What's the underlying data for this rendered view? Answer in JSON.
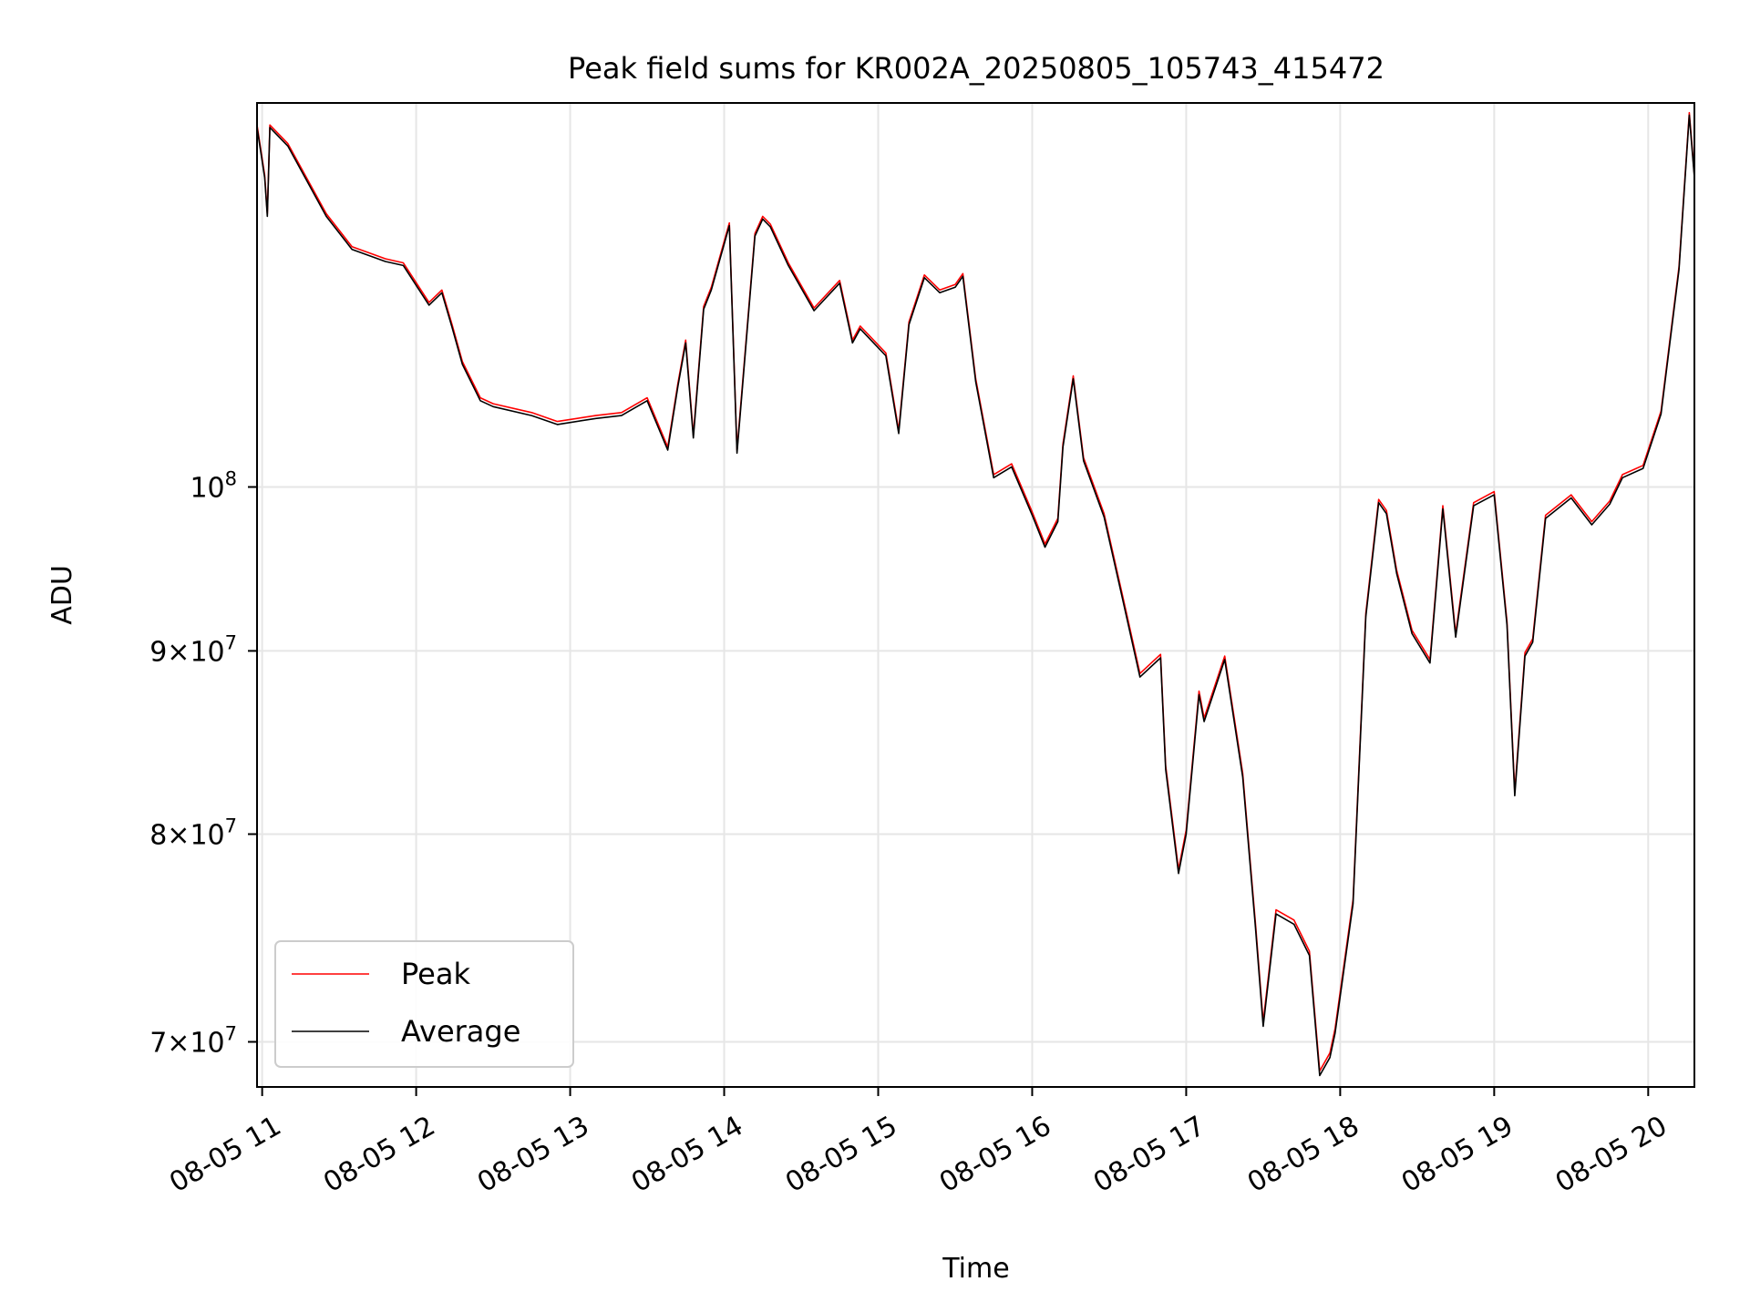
{
  "chart_data": {
    "type": "line",
    "title": "Peak field sums for KR002A_20250805_105743_415472",
    "xlabel": "Time",
    "ylabel": "ADU",
    "x_scale": "time",
    "y_scale": "log",
    "xlim": [
      "08-05 10:58",
      "08-05 20:18"
    ],
    "ylim": [
      68000000,
      128000000
    ],
    "grid": true,
    "legend": "lower-left",
    "x_ticks": [
      {
        "value": "08-05 11:00",
        "label": "08-05 11"
      },
      {
        "value": "08-05 12:00",
        "label": "08-05 12"
      },
      {
        "value": "08-05 13:00",
        "label": "08-05 13"
      },
      {
        "value": "08-05 14:00",
        "label": "08-05 14"
      },
      {
        "value": "08-05 15:00",
        "label": "08-05 15"
      },
      {
        "value": "08-05 16:00",
        "label": "08-05 16"
      },
      {
        "value": "08-05 17:00",
        "label": "08-05 17"
      },
      {
        "value": "08-05 18:00",
        "label": "08-05 18"
      },
      {
        "value": "08-05 19:00",
        "label": "08-05 19"
      },
      {
        "value": "08-05 20:00",
        "label": "08-05 20"
      }
    ],
    "y_ticks": [
      {
        "value": 100000000,
        "mantissa": "",
        "exponent": "8"
      },
      {
        "value": 90000000,
        "mantissa": "9",
        "exponent": "7"
      },
      {
        "value": 80000000,
        "mantissa": "8",
        "exponent": "7"
      },
      {
        "value": 70000000,
        "mantissa": "7",
        "exponent": "7"
      }
    ],
    "series": [
      {
        "name": "Peak",
        "color": "#ff0000",
        "legend_label": "Peak"
      },
      {
        "name": "Average",
        "color": "#000000",
        "legend_label": "Average"
      }
    ],
    "x": [
      "08-05 10:58",
      "08-05 11:01",
      "08-05 11:02",
      "08-05 11:03",
      "08-05 11:10",
      "08-05 11:25",
      "08-05 11:35",
      "08-05 11:48",
      "08-05 11:55",
      "08-05 12:05",
      "08-05 12:10",
      "08-05 12:14",
      "08-05 12:18",
      "08-05 12:25",
      "08-05 12:30",
      "08-05 12:45",
      "08-05 12:55",
      "08-05 13:10",
      "08-05 13:20",
      "08-05 13:30",
      "08-05 13:38",
      "08-05 13:42",
      "08-05 13:45",
      "08-05 13:48",
      "08-05 13:52",
      "08-05 13:55",
      "08-05 14:02",
      "08-05 14:05",
      "08-05 14:12",
      "08-05 14:15",
      "08-05 14:18",
      "08-05 14:25",
      "08-05 14:35",
      "08-05 14:45",
      "08-05 14:50",
      "08-05 14:53",
      "08-05 15:03",
      "08-05 15:08",
      "08-05 15:12",
      "08-05 15:18",
      "08-05 15:24",
      "08-05 15:30",
      "08-05 15:33",
      "08-05 15:38",
      "08-05 15:45",
      "08-05 15:52",
      "08-05 16:00",
      "08-05 16:05",
      "08-05 16:10",
      "08-05 16:12",
      "08-05 16:16",
      "08-05 16:20",
      "08-05 16:28",
      "08-05 16:35",
      "08-05 16:42",
      "08-05 16:50",
      "08-05 16:52",
      "08-05 16:57",
      "08-05 17:00",
      "08-05 17:05",
      "08-05 17:07",
      "08-05 17:15",
      "08-05 17:22",
      "08-05 17:27",
      "08-05 17:30",
      "08-05 17:35",
      "08-05 17:42",
      "08-05 17:48",
      "08-05 17:52",
      "08-05 17:56",
      "08-05 17:58",
      "08-05 18:05",
      "08-05 18:10",
      "08-05 18:15",
      "08-05 18:18",
      "08-05 18:22",
      "08-05 18:28",
      "08-05 18:35",
      "08-05 18:40",
      "08-05 18:45",
      "08-05 18:52",
      "08-05 19:00",
      "08-05 19:05",
      "08-05 19:08",
      "08-05 19:12",
      "08-05 19:15",
      "08-05 19:20",
      "08-05 19:30",
      "08-05 19:38",
      "08-05 19:45",
      "08-05 19:50",
      "08-05 19:58",
      "08-05 20:05",
      "08-05 20:12",
      "08-05 20:16",
      "08-05 20:18"
    ],
    "values_average": [
      126000000,
      122000000,
      119000000,
      126000000,
      124500000,
      119000000,
      116500000,
      115600000,
      115300000,
      112400000,
      113300000,
      110800000,
      108200000,
      105700000,
      105300000,
      104700000,
      104100000,
      104500000,
      104700000,
      105700000,
      102400000,
      106700000,
      109700000,
      103200000,
      112100000,
      113500000,
      118300000,
      102200000,
      117500000,
      118800000,
      118200000,
      115300000,
      112000000,
      114000000,
      109700000,
      110700000,
      108800000,
      103500000,
      111000000,
      114400000,
      113300000,
      113700000,
      114500000,
      107000000,
      100600000,
      101300000,
      98200000,
      96200000,
      97800000,
      102600000,
      107200000,
      101700000,
      98100000,
      93200000,
      88500000,
      89600000,
      83400000,
      78000000,
      80000000,
      87500000,
      86000000,
      89500000,
      83000000,
      75300000,
      70700000,
      76000000,
      75500000,
      74000000,
      68500000,
      69300000,
      70400000,
      76500000,
      92000000,
      99000000,
      98300000,
      94600000,
      91000000,
      89300000,
      98600000,
      90800000,
      98800000,
      99500000,
      91500000,
      82000000,
      89700000,
      90500000,
      98000000,
      99300000,
      97600000,
      98900000,
      100600000,
      101200000,
      104800000,
      115000000,
      127000000,
      122000000
    ],
    "values_peak": [
      126200000,
      122200000,
      119200000,
      126200000,
      124700000,
      119200000,
      116700000,
      115800000,
      115500000,
      112600000,
      113500000,
      111000000,
      108400000,
      105900000,
      105500000,
      104900000,
      104300000,
      104700000,
      104900000,
      105900000,
      102600000,
      106900000,
      109900000,
      103400000,
      112300000,
      113700000,
      118500000,
      102400000,
      117700000,
      119000000,
      118400000,
      115500000,
      112200000,
      114200000,
      109900000,
      110900000,
      109000000,
      103700000,
      111200000,
      114600000,
      113500000,
      113900000,
      114700000,
      107200000,
      100800000,
      101500000,
      98400000,
      96400000,
      98000000,
      102800000,
      107400000,
      101900000,
      98300000,
      93400000,
      88700000,
      89800000,
      83600000,
      78200000,
      80200000,
      87700000,
      86200000,
      89700000,
      83200000,
      75500000,
      70900000,
      76200000,
      75700000,
      74200000,
      68700000,
      69500000,
      70600000,
      76700000,
      92200000,
      99200000,
      98500000,
      94800000,
      91200000,
      89500000,
      98800000,
      91000000,
      99000000,
      99700000,
      91700000,
      82200000,
      89900000,
      90700000,
      98200000,
      99500000,
      97800000,
      99100000,
      100800000,
      101400000,
      105000000,
      115200000,
      127200000,
      122200000
    ]
  }
}
